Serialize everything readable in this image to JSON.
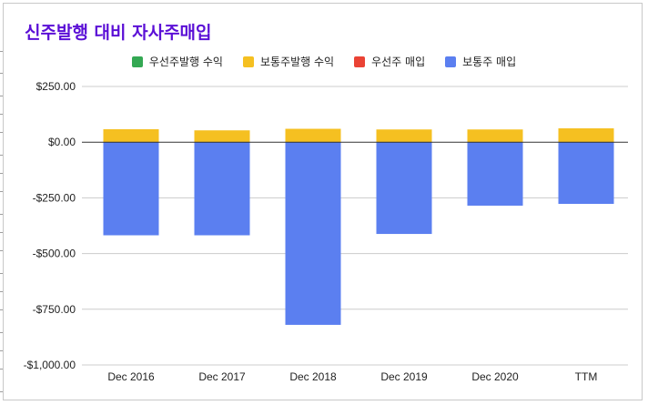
{
  "chart_data": {
    "type": "bar",
    "stacked": true,
    "title": "신주발행 대비 자사주매입",
    "categories": [
      "Dec 2016",
      "Dec 2017",
      "Dec 2018",
      "Dec 2019",
      "Dec 2020",
      "TTM"
    ],
    "series": [
      {
        "name": "우선주발행 수익",
        "color": "#34a853",
        "values": [
          0,
          0,
          0,
          0,
          0,
          0
        ]
      },
      {
        "name": "보통주발행 수익",
        "color": "#f5c021",
        "values": [
          58,
          53,
          60,
          57,
          57,
          62
        ]
      },
      {
        "name": "우선주 매입",
        "color": "#ea4335",
        "values": [
          0,
          0,
          0,
          0,
          0,
          0
        ]
      },
      {
        "name": "보통주 매입",
        "color": "#5b7ff0",
        "values": [
          -418,
          -418,
          -820,
          -412,
          -285,
          -277
        ]
      }
    ],
    "ylim": [
      -1000,
      250
    ],
    "yticks": [
      250,
      0,
      -250,
      -500,
      -750,
      -1000
    ],
    "ytick_labels": [
      "$250.00",
      "$0.00",
      "-$250.00",
      "-$500.00",
      "-$750.00",
      "-$1,000.00"
    ],
    "xlabel": "",
    "ylabel": "",
    "legend_position": "top"
  }
}
